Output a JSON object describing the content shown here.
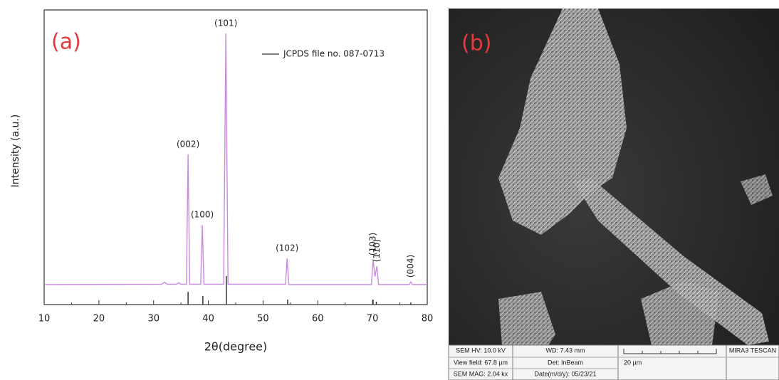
{
  "chart_data": {
    "type": "line",
    "panel_label": "(a)",
    "xlabel": "2θ(degree)",
    "ylabel": "Intensity (a.u.)",
    "xlim": [
      10,
      80
    ],
    "xticks": [
      10,
      20,
      30,
      40,
      50,
      60,
      70,
      80
    ],
    "xminor_ticks": [
      15,
      25,
      35,
      45,
      55,
      65,
      75
    ],
    "ylim": [
      0,
      100
    ],
    "legend": "top-right",
    "series": [
      {
        "color": "#c98be0",
        "style": "line",
        "x": [
          10,
          31.5,
          32,
          32.5,
          34.2,
          34.6,
          35.0,
          36.0,
          36.3,
          36.6,
          38.6,
          38.9,
          39.2,
          42.8,
          43.2,
          43.6,
          54.1,
          54.4,
          54.7,
          69.8,
          70.1,
          70.45,
          70.8,
          71.1,
          76.7,
          77.0,
          77.3,
          80
        ],
        "values": [
          6.8,
          6.9,
          7.6,
          6.9,
          6.9,
          7.4,
          6.9,
          6.9,
          51,
          6.9,
          6.9,
          27,
          6.9,
          6.9,
          92,
          6.9,
          6.9,
          15.7,
          6.8,
          6.8,
          15.2,
          9.5,
          13,
          6.8,
          6.8,
          7.7,
          6.8,
          6.8
        ]
      },
      {
        "name": "JCPDS file no. 087-0713",
        "color": "#333333",
        "style": "stick",
        "x": [
          36.3,
          39.0,
          43.3,
          54.5,
          70.1,
          70.7,
          77.0
        ],
        "values": [
          4.3,
          2.9,
          9.7,
          1.7,
          1.7,
          1.0,
          0.7
        ]
      }
    ],
    "annotations": [
      {
        "text": "(002)",
        "x": 36.3
      },
      {
        "text": "(100)",
        "x": 38.9
      },
      {
        "text": "(101)",
        "x": 43.2
      },
      {
        "text": "(102)",
        "x": 54.4
      },
      {
        "text": "(103)",
        "x": 70.1,
        "vertical": true
      },
      {
        "text": "(110)",
        "x": 70.8,
        "vertical": true
      },
      {
        "text": "(004)",
        "x": 77.0,
        "vertical": true
      }
    ]
  },
  "image_panel": {
    "panel_label": "(b)",
    "info": [
      [
        "SEM HV: 10.0 kV",
        "WD: 7.43 mm",
        "MIRA3 TESCAN"
      ],
      [
        "View field: 67.8 µm",
        "Det: InBeam",
        "20 µm"
      ],
      [
        "SEM MAG: 2.04 kx",
        "Date(m/d/y): 05/23/21"
      ]
    ]
  }
}
